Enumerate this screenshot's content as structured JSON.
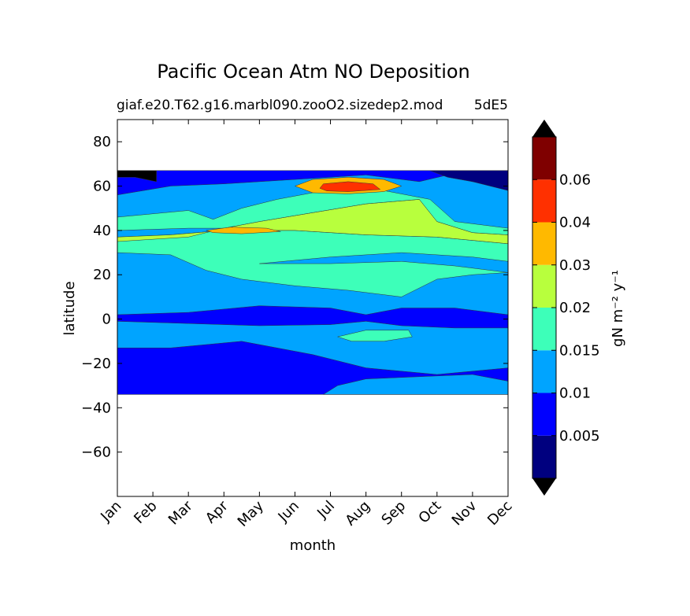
{
  "chart_data": {
    "type": "heatmap",
    "title": "Pacific Ocean Atm NO Deposition",
    "subtitle": "giaf.e20.T62.g16.marbl090.zooO2.sizedep2.mod",
    "subtitle_right": "5dE5",
    "xlabel": "month",
    "ylabel": "latitude",
    "x_categories": [
      "Jan",
      "Feb",
      "Mar",
      "Apr",
      "May",
      "Jun",
      "Jul",
      "Aug",
      "Sep",
      "Oct",
      "Nov",
      "Dec"
    ],
    "y_range": [
      -80,
      90
    ],
    "y_ticks": [
      80,
      60,
      40,
      20,
      0,
      -20,
      -40,
      -60
    ],
    "y_tick_labels": [
      "80",
      "60",
      "40",
      "20",
      "0",
      "−20",
      "−40",
      "−60"
    ],
    "data_extent": {
      "lat_min": -34,
      "lat_max": 67,
      "month_start": 0,
      "month_end": 11
    },
    "colorbar": {
      "label": "gN m⁻² y⁻¹",
      "levels": [
        "",
        "0.005",
        "0.01",
        "0.015",
        "0.02",
        "0.03",
        "0.04",
        "0.06",
        ""
      ],
      "colors": [
        "#00007f",
        "#0000ff",
        "#00a4ff",
        "#3dffb9",
        "#b8ff3d",
        "#ffb900",
        "#ff3000",
        "#7f0000"
      ],
      "extend_under_color": "#000000",
      "extend_over_color": "#000000"
    },
    "regions": [
      {
        "name": "south-band",
        "level_index": 1,
        "points": [
          [
            0,
            -34
          ],
          [
            11,
            -34
          ],
          [
            11,
            -22
          ],
          [
            9,
            -25
          ],
          [
            7,
            -22
          ],
          [
            5.5,
            -16
          ],
          [
            3.5,
            -10
          ],
          [
            1.5,
            -13
          ],
          [
            0,
            -13
          ]
        ]
      },
      {
        "name": "deep-south-corner",
        "level_index": 2,
        "points": [
          [
            5.8,
            -34
          ],
          [
            9,
            -34
          ],
          [
            11,
            -34
          ],
          [
            11,
            -28
          ],
          [
            10,
            -25
          ],
          [
            8.5,
            -26
          ],
          [
            7,
            -27
          ],
          [
            6.2,
            -30
          ]
        ]
      },
      {
        "name": "equatorial-band",
        "level_index": 1,
        "points": [
          [
            0,
            -1
          ],
          [
            2,
            -2
          ],
          [
            4,
            -3
          ],
          [
            6,
            -2.5
          ],
          [
            7,
            -1
          ],
          [
            8,
            -3
          ],
          [
            9.5,
            -4
          ],
          [
            11,
            -4
          ],
          [
            11,
            2
          ],
          [
            9.5,
            5
          ],
          [
            8,
            5
          ],
          [
            7,
            2
          ],
          [
            6,
            5
          ],
          [
            4,
            6
          ],
          [
            2,
            3
          ],
          [
            0,
            2
          ]
        ]
      },
      {
        "name": "equatorial-green-patch",
        "level_index": 3,
        "points": [
          [
            6.2,
            -8
          ],
          [
            7,
            -5
          ],
          [
            8.2,
            -5
          ],
          [
            8.3,
            -8
          ],
          [
            7.5,
            -10
          ],
          [
            6.6,
            -10
          ]
        ]
      },
      {
        "name": "mid-band-green",
        "level_index": 3,
        "points": [
          [
            0,
            30
          ],
          [
            1.5,
            29
          ],
          [
            2.5,
            22
          ],
          [
            3.5,
            18
          ],
          [
            5,
            15
          ],
          [
            6.5,
            13
          ],
          [
            8,
            10
          ],
          [
            9,
            18
          ],
          [
            10,
            20
          ],
          [
            11,
            21
          ],
          [
            11,
            34
          ],
          [
            9,
            37
          ],
          [
            7,
            38
          ],
          [
            5,
            40
          ],
          [
            3,
            40
          ],
          [
            1.5,
            38
          ],
          [
            0,
            37
          ]
        ]
      },
      {
        "name": "mid-band-blue-intrusion",
        "level_index": 2,
        "points": [
          [
            4,
            25
          ],
          [
            6,
            28
          ],
          [
            8,
            30
          ],
          [
            10,
            28
          ],
          [
            11,
            26
          ],
          [
            11,
            21
          ],
          [
            9.5,
            24
          ],
          [
            8,
            26
          ],
          [
            6,
            25
          ]
        ]
      },
      {
        "name": "green-yellow-band",
        "level_index": 4,
        "points": [
          [
            0,
            35
          ],
          [
            2,
            37
          ],
          [
            3,
            41
          ],
          [
            4,
            44
          ],
          [
            5.5,
            48
          ],
          [
            7,
            52
          ],
          [
            8.5,
            54
          ],
          [
            9,
            44
          ],
          [
            10,
            39
          ],
          [
            11,
            38
          ],
          [
            11,
            34
          ],
          [
            9,
            37
          ],
          [
            7,
            38
          ],
          [
            5,
            40
          ],
          [
            3,
            40
          ],
          [
            1.5,
            38
          ],
          [
            0,
            37
          ]
        ]
      },
      {
        "name": "northern-cyan",
        "level_index": 3,
        "points": [
          [
            0,
            46
          ],
          [
            2,
            49
          ],
          [
            2.7,
            45
          ],
          [
            3.5,
            50
          ],
          [
            4.5,
            54
          ],
          [
            5.5,
            57
          ],
          [
            7.5,
            58
          ],
          [
            8.8,
            54
          ],
          [
            9.5,
            44
          ],
          [
            10.5,
            42
          ],
          [
            11,
            41
          ],
          [
            11,
            38
          ],
          [
            10,
            39
          ],
          [
            9,
            44
          ],
          [
            8.5,
            54
          ],
          [
            7,
            52
          ],
          [
            5.5,
            48
          ],
          [
            4,
            44
          ],
          [
            3,
            41
          ],
          [
            2,
            41
          ],
          [
            0,
            40
          ]
        ]
      },
      {
        "name": "northern-blue",
        "level_index": 1,
        "points": [
          [
            0,
            67
          ],
          [
            11,
            67
          ],
          [
            11,
            60
          ],
          [
            10,
            62
          ],
          [
            9.3,
            65
          ],
          [
            8.5,
            62
          ],
          [
            7,
            65
          ],
          [
            5,
            63
          ],
          [
            3,
            61
          ],
          [
            1.5,
            60
          ],
          [
            0,
            56
          ]
        ]
      },
      {
        "name": "north-corner-dark",
        "level_index": 0,
        "points": [
          [
            8.8,
            67
          ],
          [
            11,
            67
          ],
          [
            11,
            58
          ],
          [
            10,
            62
          ],
          [
            9.3,
            64
          ]
        ]
      },
      {
        "name": "yellow-blob-north",
        "level_index": 5,
        "points": [
          [
            5,
            60
          ],
          [
            5.5,
            63
          ],
          [
            6.5,
            64
          ],
          [
            7.5,
            63
          ],
          [
            8,
            60
          ],
          [
            7.5,
            57.5
          ],
          [
            6.5,
            56.5
          ],
          [
            5.5,
            57
          ]
        ]
      },
      {
        "name": "red-blob-north",
        "level_index": 6,
        "points": [
          [
            5.7,
            59
          ],
          [
            5.8,
            61
          ],
          [
            6.5,
            62
          ],
          [
            7.2,
            61
          ],
          [
            7.4,
            58.5
          ],
          [
            6.5,
            57.5
          ],
          [
            5.9,
            57.8
          ]
        ]
      },
      {
        "name": "yellow-blob-west",
        "level_index": 5,
        "points": [
          [
            2.5,
            40
          ],
          [
            3.2,
            41.5
          ],
          [
            4.2,
            41
          ],
          [
            4.6,
            39.5
          ],
          [
            3.5,
            38.5
          ],
          [
            2.7,
            39
          ]
        ]
      },
      {
        "name": "black-corner",
        "level_index": 8,
        "points": [
          [
            0,
            67
          ],
          [
            1.1,
            67
          ],
          [
            1.1,
            62
          ],
          [
            0.5,
            64
          ],
          [
            0,
            64
          ]
        ]
      }
    ]
  }
}
